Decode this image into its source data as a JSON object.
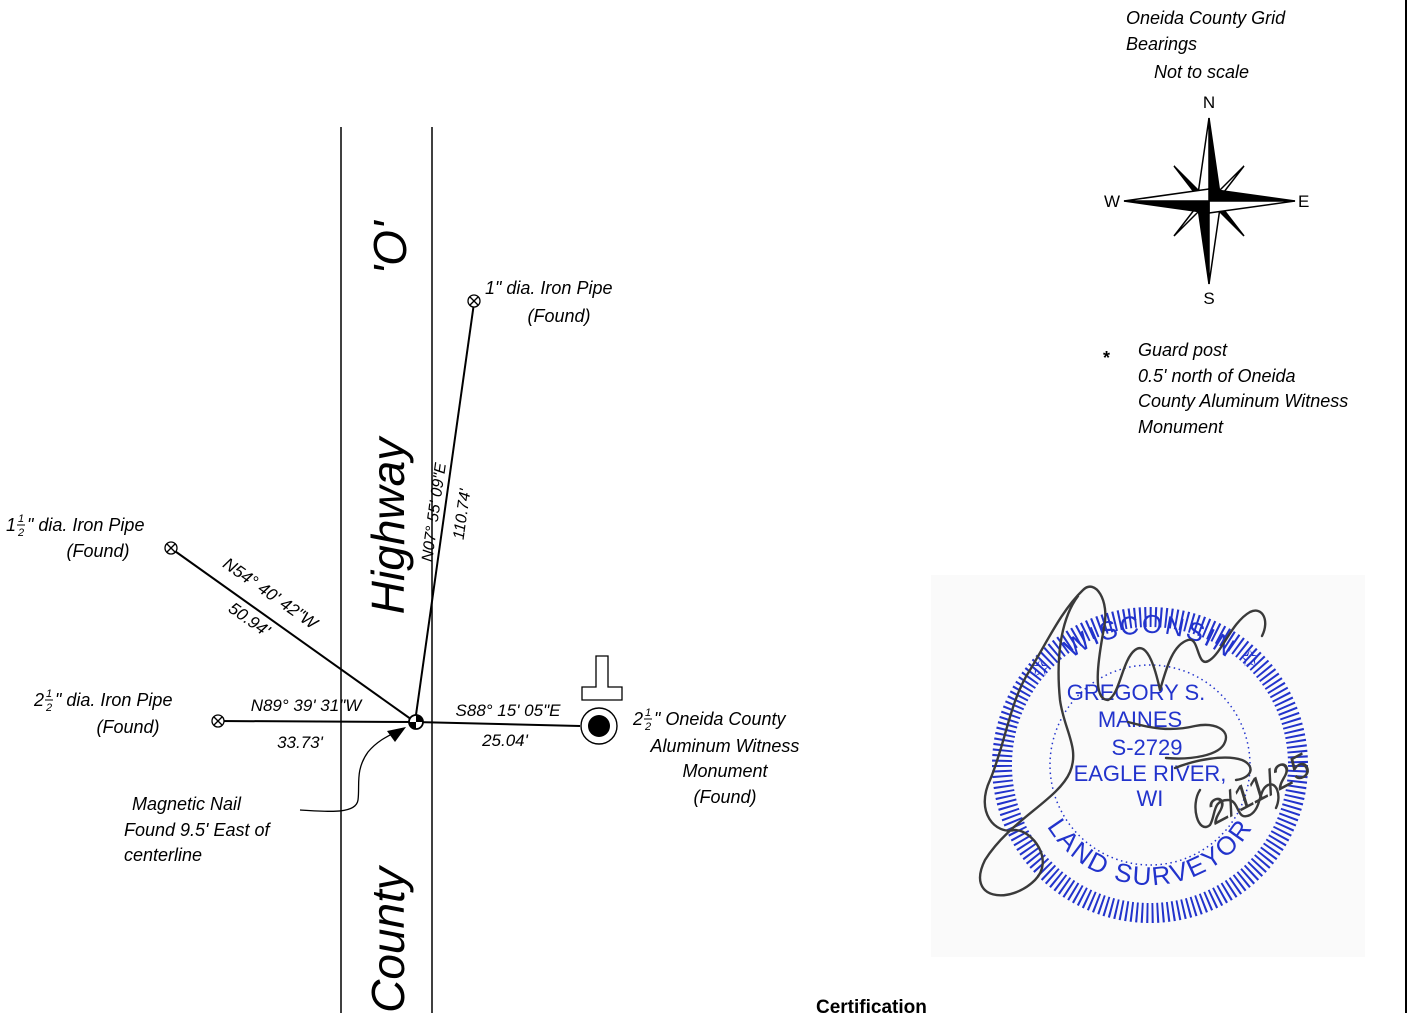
{
  "legend": {
    "grid_line1": "Oneida County Grid",
    "grid_line2": "Bearings",
    "scale_note": "Not to scale",
    "north": "N",
    "south": "S",
    "east": "E",
    "west": "W",
    "guard_star": "*",
    "guard_line1": "Guard post",
    "guard_line2": "0.5' north of Oneida",
    "guard_line3": "County Aluminum Witness",
    "guard_line4": "Monument"
  },
  "road": {
    "name_top": "'O'",
    "name_mid": "Highway",
    "name_bottom": "County"
  },
  "monuments": {
    "pipe_1in_line1": "1\" dia. Iron Pipe",
    "pipe_1in_line2": "(Found)",
    "pipe_1_5_whole": "1",
    "pipe_1_5_num": "1",
    "pipe_1_5_den": "2",
    "pipe_1_5_text": "\" dia. Iron Pipe",
    "pipe_1_5_line2": "(Found)",
    "pipe_2_5_whole": "2",
    "pipe_2_5_num": "1",
    "pipe_2_5_den": "2",
    "pipe_2_5_text": "\" dia. Iron Pipe",
    "pipe_2_5_line2": "(Found)",
    "witness_whole": "2",
    "witness_num": "1",
    "witness_den": "2",
    "witness_text": "\" Oneida County",
    "witness_line2": "Aluminum Witness",
    "witness_line3": "Monument",
    "witness_line4": "(Found)",
    "nail_line1": "Magnetic Nail",
    "nail_line2": "Found 9.5' East of",
    "nail_line3": "centerline"
  },
  "courses": {
    "north_bearing": "N07° 55' 09\"E",
    "north_distance": "110.74'",
    "nw_bearing": "N54° 40' 42\"W",
    "nw_distance": "50.94'",
    "west_bearing": "N89° 39' 31\"W",
    "west_distance": "33.73'",
    "east_bearing": "S88° 15' 05\"E",
    "east_distance": "25.04'"
  },
  "seal": {
    "state": "WISCONSIN",
    "name1": "GREGORY S.",
    "name2": "MAINES",
    "license": "S-2729",
    "city": "EAGLE RIVER,",
    "st": "WI",
    "role": "LAND SURVEYOR",
    "signature_date": "2/11/25",
    "ink_color": "#2233cc"
  },
  "footer": {
    "certification": "Certification"
  }
}
